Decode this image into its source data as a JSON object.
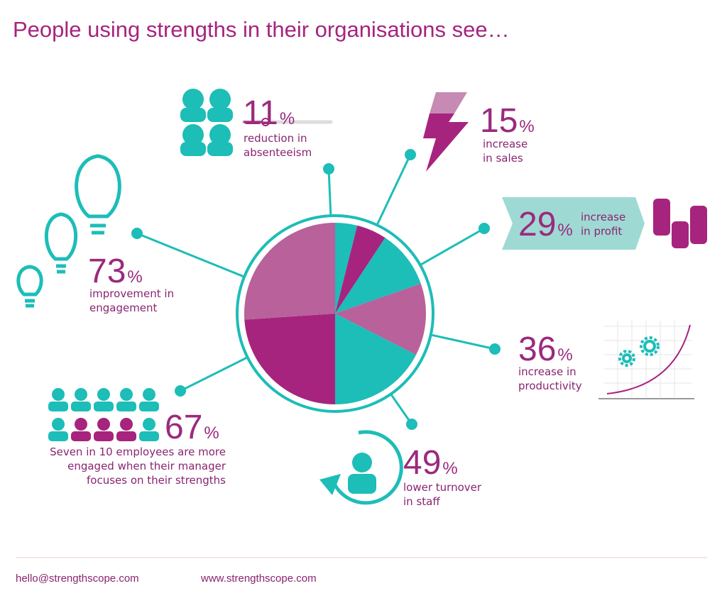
{
  "chart_data": {
    "type": "pie",
    "title": "People using strengths in their organisations see…",
    "values": [
      11,
      15,
      29,
      36,
      49,
      67,
      73
    ],
    "unit": "%",
    "descriptions": [
      [
        "reduction in",
        "absenteeism"
      ],
      [
        "increase",
        "in sales"
      ],
      [
        "increase",
        "in profit"
      ],
      [
        "increase in",
        "productivity"
      ],
      [
        "lower turnover",
        "in staff"
      ],
      [
        "Seven in 10 employees  are more",
        "engaged when their manager",
        "focuses on their strengths"
      ],
      [
        "improvement in",
        "engagement"
      ]
    ],
    "colors": [
      "#1dbdb8",
      "#a6247e",
      "#1dbdb8",
      "#b8619a",
      "#1dbdb8",
      "#a6247e",
      "#b8619a"
    ]
  },
  "footer": {
    "email": "hello@strengthscope.com",
    "website": "www.strengthscope.com"
  }
}
